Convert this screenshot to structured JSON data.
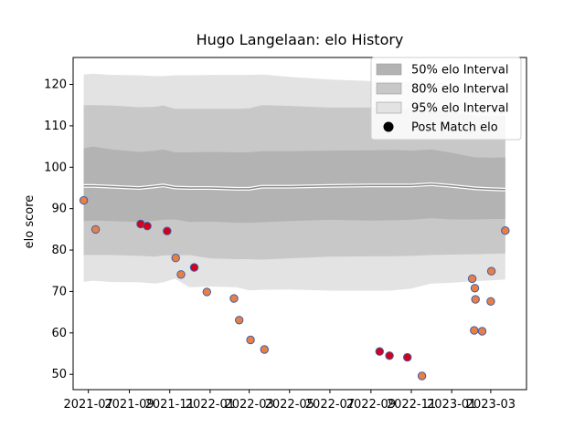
{
  "chart_data": {
    "type": "scatter",
    "title": "Hugo Langelaan: elo History",
    "xlabel": "",
    "ylabel": "elo score",
    "xlim": [
      "2021-06-08",
      "2023-04-24"
    ],
    "ylim": [
      46.3,
      126.5
    ],
    "grid": false,
    "legend_position": "top-right",
    "x_ticks": [
      "2021-07",
      "2021-09",
      "2021-11",
      "2022-01",
      "2022-03",
      "2022-05",
      "2022-07",
      "2022-09",
      "2022-11",
      "2023-01",
      "2023-03"
    ],
    "x_tick_dates": [
      "2021-07-01",
      "2021-09-01",
      "2021-11-01",
      "2022-01-01",
      "2022-03-01",
      "2022-05-01",
      "2022-07-01",
      "2022-09-01",
      "2022-11-01",
      "2023-01-01",
      "2023-03-01"
    ],
    "y_ticks": [
      50,
      60,
      70,
      80,
      90,
      100,
      110,
      120
    ],
    "legend": [
      {
        "label": "50% elo Interval",
        "kind": "band",
        "color": "#b3b3b3"
      },
      {
        "label": "80% elo Interval",
        "kind": "band",
        "color": "#c8c8c8"
      },
      {
        "label": "95% elo Interval",
        "kind": "band",
        "color": "#e3e3e3"
      },
      {
        "label": "Post Match elo",
        "kind": "marker",
        "color": "#000000"
      }
    ],
    "bands": {
      "dates": [
        "2021-06-24",
        "2021-07-08",
        "2021-08-05",
        "2021-09-16",
        "2021-10-10",
        "2021-10-22",
        "2021-11-09",
        "2021-12-01",
        "2022-01-01",
        "2022-02-10",
        "2022-03-01",
        "2022-03-20",
        "2022-05-01",
        "2022-07-01",
        "2022-09-01",
        "2022-10-01",
        "2022-11-01",
        "2022-12-01",
        "2023-01-01",
        "2023-02-05",
        "2023-03-01",
        "2023-03-23"
      ],
      "center": [
        95.5,
        95.5,
        95.3,
        95.0,
        95.4,
        95.6,
        95.1,
        95.0,
        95.0,
        94.8,
        94.8,
        95.3,
        95.3,
        95.5,
        95.6,
        95.6,
        95.6,
        95.9,
        95.5,
        94.9,
        94.7,
        94.6
      ],
      "p50": {
        "lower": [
          87.0,
          87.1,
          87.0,
          86.8,
          87.1,
          87.3,
          87.4,
          86.8,
          86.9,
          86.6,
          86.6,
          86.7,
          87.0,
          87.3,
          87.1,
          87.2,
          87.3,
          87.7,
          87.4,
          87.4,
          87.5,
          87.5
        ],
        "upper": [
          104.6,
          105.0,
          104.3,
          103.7,
          104.0,
          104.3,
          103.6,
          103.6,
          103.7,
          103.6,
          103.6,
          103.9,
          103.9,
          104.0,
          104.1,
          104.2,
          104.0,
          104.3,
          103.5,
          102.4,
          102.3,
          102.4
        ]
      },
      "p80": {
        "lower": [
          78.8,
          78.8,
          78.8,
          78.6,
          78.4,
          78.7,
          78.7,
          78.8,
          78.0,
          77.8,
          77.8,
          77.7,
          78.0,
          78.4,
          78.5,
          78.5,
          78.6,
          78.8,
          78.9,
          79.0,
          79.1,
          79.2
        ],
        "upper": [
          115.0,
          115.0,
          114.9,
          114.5,
          114.6,
          114.9,
          114.1,
          114.1,
          114.1,
          114.1,
          114.2,
          115.0,
          114.8,
          114.4,
          114.4,
          114.4,
          114.0,
          114.2,
          113.3,
          112.4,
          112.3,
          112.4
        ]
      },
      "p95": {
        "lower": [
          72.3,
          72.6,
          72.3,
          72.2,
          71.9,
          72.2,
          73.1,
          71.0,
          71.2,
          71.0,
          70.3,
          70.4,
          70.5,
          70.2,
          70.2,
          70.2,
          70.7,
          71.9,
          72.1,
          72.5,
          72.7,
          72.9
        ],
        "upper": [
          122.4,
          122.6,
          122.3,
          122.2,
          122.0,
          122.0,
          122.2,
          122.2,
          122.3,
          122.3,
          122.3,
          122.4,
          121.8,
          121.2,
          120.8,
          120.7,
          120.6,
          120.8,
          119.9,
          119.2,
          119.3,
          119.4
        ]
      }
    },
    "series": [
      {
        "kind": "post_match",
        "dates": [
          "2021-06-24",
          "2021-07-12",
          "2021-09-18",
          "2021-09-28",
          "2021-10-28",
          "2021-11-10",
          "2021-11-18",
          "2021-12-08",
          "2021-12-27",
          "2022-02-06",
          "2022-02-14",
          "2022-03-03",
          "2022-03-24",
          "2022-09-14",
          "2022-09-29",
          "2022-10-26",
          "2022-11-17",
          "2023-02-01",
          "2023-02-04",
          "2023-02-05",
          "2023-02-06",
          "2023-02-16",
          "2023-03-01",
          "2023-03-02",
          "2023-03-23"
        ],
        "values": [
          92,
          85,
          86.3,
          85.8,
          84.6,
          78.1,
          74.1,
          75.8,
          69.9,
          68.3,
          63.1,
          58.3,
          56.0,
          55.5,
          54.5,
          54.1,
          49.6,
          73.1,
          60.6,
          70.8,
          68.1,
          60.4,
          67.6,
          74.9,
          84.7
        ],
        "match_type": [
          "normal",
          "normal",
          "highlight",
          "highlight",
          "highlight",
          "normal",
          "normal",
          "highlight",
          "normal",
          "normal",
          "normal",
          "normal",
          "normal",
          "highlight",
          "highlight",
          "highlight",
          "normal",
          "normal",
          "normal",
          "normal",
          "normal",
          "normal",
          "normal",
          "normal",
          "normal"
        ],
        "colors": {
          "normal_fill": "#e97f43",
          "highlight_fill": "#d4001a",
          "edge": "#3d5da8"
        }
      }
    ]
  }
}
